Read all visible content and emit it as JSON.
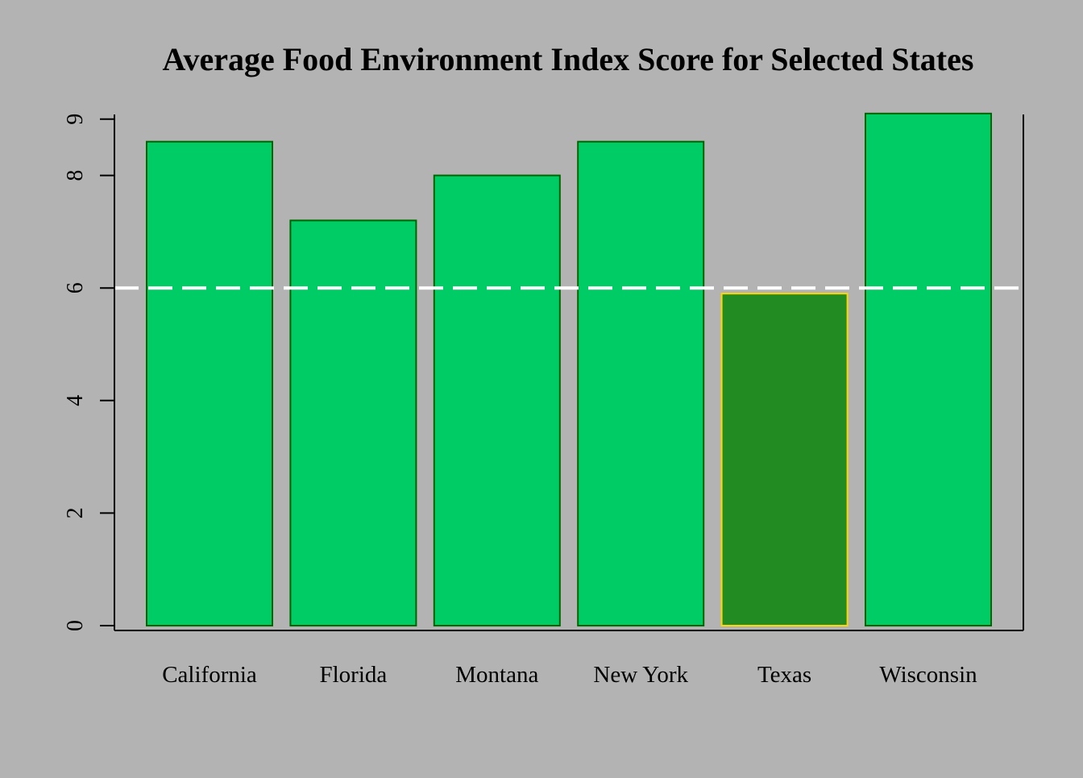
{
  "chart_data": {
    "type": "bar",
    "title": "Average Food Environment Index Score for Selected States",
    "xlabel": "",
    "ylabel": "",
    "categories": [
      "California",
      "Florida",
      "Montana",
      "New York",
      "Texas",
      "Wisconsin"
    ],
    "values": [
      8.6,
      7.2,
      8.0,
      8.6,
      5.9,
      9.1
    ],
    "ylim": [
      0,
      9.1
    ],
    "yticks": [
      0,
      2,
      4,
      6,
      8,
      9
    ],
    "reference_line": 6,
    "highlighted_category": "Texas",
    "grid": false,
    "legend": "none"
  },
  "colors": {
    "background": "#b3b3b3",
    "bar_fill": "#00cc66",
    "bar_border": "#006400",
    "highlight_fill": "#228b22",
    "highlight_border": "#ffd700",
    "reference_line": "#ffffff",
    "axis": "#000000"
  }
}
